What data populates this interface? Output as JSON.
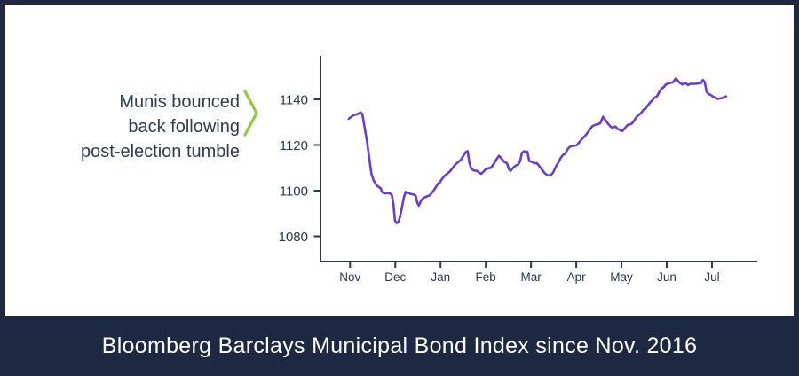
{
  "annotation": {
    "lines": [
      "Munis bounced",
      "back following",
      "post-election tumble"
    ]
  },
  "footer": {
    "title": "Bloomberg Barclays Municipal Bond Index since Nov. 2016"
  },
  "colors": {
    "navy": "#1d2942",
    "axis_text": "#2b3950",
    "line_purple": "#6a3cd2",
    "chevron_green": "#94c83d",
    "background": "#ffffff",
    "title_text": "#ffffff"
  },
  "chart_data": {
    "type": "line",
    "title": "Bloomberg Barclays Municipal Bond Index since Nov. 2016",
    "xlabel": "",
    "ylabel": "",
    "x_ticks": [
      "Nov",
      "Dec",
      "Jan",
      "Feb",
      "Mar",
      "Apr",
      "May",
      "Jun",
      "Jul"
    ],
    "y_ticks": [
      1080,
      1100,
      1120,
      1140
    ],
    "ylim": [
      1069,
      1159
    ],
    "grid": false,
    "legend": "none",
    "series": [
      {
        "name": "Bloomberg Barclays Municipal Bond Index",
        "color": "#6a3cd2",
        "points": [
          [
            -0.03,
            1131.5
          ],
          [
            0.07,
            1133.0
          ],
          [
            0.17,
            1133.6
          ],
          [
            0.23,
            1134.3
          ],
          [
            0.27,
            1133.6
          ],
          [
            0.31,
            1129.0
          ],
          [
            0.37,
            1122.0
          ],
          [
            0.43,
            1113.5
          ],
          [
            0.47,
            1107.5
          ],
          [
            0.52,
            1104.5
          ],
          [
            0.58,
            1102.5
          ],
          [
            0.64,
            1101.5
          ],
          [
            0.68,
            1101.0
          ],
          [
            0.7,
            1099.5
          ],
          [
            0.76,
            1098.8
          ],
          [
            0.82,
            1099.0
          ],
          [
            0.88,
            1098.8
          ],
          [
            0.92,
            1098.3
          ],
          [
            0.96,
            1094.0
          ],
          [
            0.99,
            1087.0
          ],
          [
            1.03,
            1085.8
          ],
          [
            1.07,
            1086.3
          ],
          [
            1.11,
            1089.0
          ],
          [
            1.15,
            1093.0
          ],
          [
            1.19,
            1097.0
          ],
          [
            1.23,
            1099.5
          ],
          [
            1.29,
            1099.0
          ],
          [
            1.35,
            1098.5
          ],
          [
            1.41,
            1098.3
          ],
          [
            1.45,
            1097.8
          ],
          [
            1.49,
            1094.5
          ],
          [
            1.52,
            1093.5
          ],
          [
            1.58,
            1096.0
          ],
          [
            1.64,
            1097.0
          ],
          [
            1.7,
            1097.5
          ],
          [
            1.76,
            1098.0
          ],
          [
            1.82,
            1099.3
          ],
          [
            1.88,
            1101.0
          ],
          [
            1.94,
            1103.0
          ],
          [
            1.98,
            1103.5
          ],
          [
            2.03,
            1105.0
          ],
          [
            2.09,
            1106.5
          ],
          [
            2.15,
            1107.5
          ],
          [
            2.21,
            1108.5
          ],
          [
            2.27,
            1110.0
          ],
          [
            2.33,
            1111.5
          ],
          [
            2.39,
            1112.5
          ],
          [
            2.45,
            1113.5
          ],
          [
            2.51,
            1115.5
          ],
          [
            2.56,
            1117.0
          ],
          [
            2.6,
            1117.3
          ],
          [
            2.64,
            1112.0
          ],
          [
            2.68,
            1109.5
          ],
          [
            2.74,
            1108.8
          ],
          [
            2.8,
            1108.7
          ],
          [
            2.86,
            1107.8
          ],
          [
            2.9,
            1107.4
          ],
          [
            2.96,
            1108.5
          ],
          [
            3.0,
            1109.4
          ],
          [
            3.05,
            1109.8
          ],
          [
            3.11,
            1110.0
          ],
          [
            3.17,
            1111.5
          ],
          [
            3.23,
            1113.5
          ],
          [
            3.29,
            1115.3
          ],
          [
            3.35,
            1114.0
          ],
          [
            3.41,
            1112.6
          ],
          [
            3.47,
            1112.0
          ],
          [
            3.51,
            1109.4
          ],
          [
            3.55,
            1108.7
          ],
          [
            3.6,
            1110.0
          ],
          [
            3.66,
            1111.0
          ],
          [
            3.72,
            1111.5
          ],
          [
            3.76,
            1113.0
          ],
          [
            3.8,
            1116.5
          ],
          [
            3.84,
            1117.2
          ],
          [
            3.92,
            1117.0
          ],
          [
            3.96,
            1113.0
          ],
          [
            4.02,
            1112.6
          ],
          [
            4.08,
            1112.0
          ],
          [
            4.13,
            1112.0
          ],
          [
            4.19,
            1110.6
          ],
          [
            4.25,
            1109.0
          ],
          [
            4.31,
            1107.5
          ],
          [
            4.37,
            1106.7
          ],
          [
            4.43,
            1106.6
          ],
          [
            4.49,
            1108.0
          ],
          [
            4.55,
            1110.6
          ],
          [
            4.61,
            1112.5
          ],
          [
            4.66,
            1114.5
          ],
          [
            4.7,
            1115.5
          ],
          [
            4.76,
            1116.4
          ],
          [
            4.82,
            1118.5
          ],
          [
            4.88,
            1119.5
          ],
          [
            4.94,
            1119.7
          ],
          [
            5.0,
            1119.8
          ],
          [
            5.06,
            1121.0
          ],
          [
            5.12,
            1122.5
          ],
          [
            5.17,
            1123.5
          ],
          [
            5.23,
            1124.9
          ],
          [
            5.29,
            1126.5
          ],
          [
            5.35,
            1128.1
          ],
          [
            5.41,
            1128.8
          ],
          [
            5.47,
            1129.0
          ],
          [
            5.53,
            1129.5
          ],
          [
            5.59,
            1132.4
          ],
          [
            5.64,
            1131.0
          ],
          [
            5.7,
            1129.4
          ],
          [
            5.76,
            1128.0
          ],
          [
            5.8,
            1127.5
          ],
          [
            5.86,
            1128.1
          ],
          [
            5.92,
            1127.0
          ],
          [
            5.98,
            1126.4
          ],
          [
            6.02,
            1126.1
          ],
          [
            6.08,
            1127.5
          ],
          [
            6.14,
            1128.8
          ],
          [
            6.19,
            1129.0
          ],
          [
            6.23,
            1129.4
          ],
          [
            6.29,
            1131.0
          ],
          [
            6.35,
            1132.7
          ],
          [
            6.43,
            1134.0
          ],
          [
            6.49,
            1135.5
          ],
          [
            6.53,
            1135.9
          ],
          [
            6.59,
            1137.5
          ],
          [
            6.63,
            1138.6
          ],
          [
            6.68,
            1139.5
          ],
          [
            6.72,
            1140.6
          ],
          [
            6.78,
            1141.3
          ],
          [
            6.82,
            1142.6
          ],
          [
            6.88,
            1144.6
          ],
          [
            6.94,
            1145.5
          ],
          [
            6.98,
            1146.5
          ],
          [
            7.04,
            1147.0
          ],
          [
            7.08,
            1147.2
          ],
          [
            7.14,
            1147.5
          ],
          [
            7.2,
            1149.2
          ],
          [
            7.25,
            1148.0
          ],
          [
            7.29,
            1147.2
          ],
          [
            7.35,
            1146.5
          ],
          [
            7.41,
            1147.2
          ],
          [
            7.47,
            1146.3
          ],
          [
            7.53,
            1146.8
          ],
          [
            7.59,
            1146.8
          ],
          [
            7.64,
            1146.8
          ],
          [
            7.7,
            1147.0
          ],
          [
            7.76,
            1147.2
          ],
          [
            7.8,
            1148.5
          ],
          [
            7.84,
            1147.5
          ],
          [
            7.88,
            1143.3
          ],
          [
            7.92,
            1142.5
          ],
          [
            7.96,
            1142.0
          ],
          [
            8.02,
            1141.3
          ],
          [
            8.08,
            1140.5
          ],
          [
            8.12,
            1140.2
          ],
          [
            8.17,
            1140.4
          ],
          [
            8.23,
            1140.6
          ],
          [
            8.27,
            1141.0
          ],
          [
            8.31,
            1141.3
          ]
        ]
      }
    ]
  }
}
